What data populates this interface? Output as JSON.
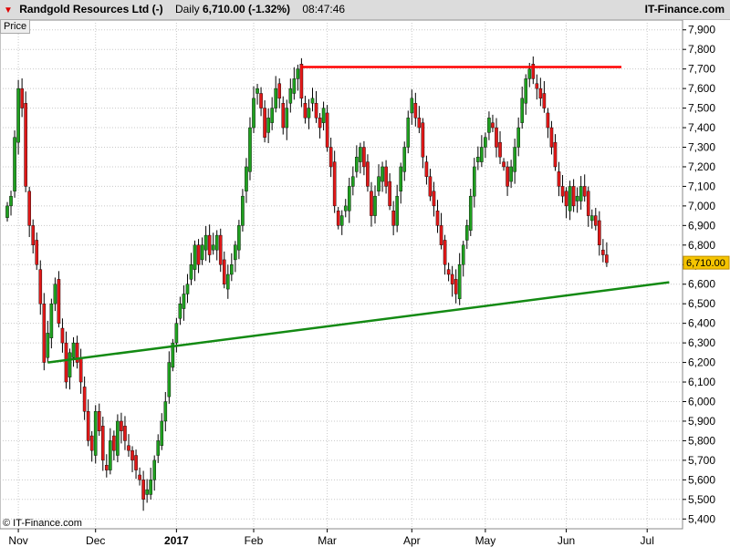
{
  "header": {
    "instrument": "Randgold Resources Ltd (-)",
    "period": "Daily",
    "change": "6,710.00 (-1.32%)",
    "time": "08:47:46",
    "site": "IT-Finance.com"
  },
  "price_label": "Price",
  "copyright": "© IT-Finance.com",
  "colors": {
    "up": "#1fa01f",
    "down": "#e01818",
    "resistance": "#ff0000",
    "support": "#138a13",
    "grid": "#c8c8c8"
  },
  "chart_data": {
    "type": "candlestick",
    "title": "Randgold Resources Ltd (-)",
    "ylabel": "Price",
    "ylim": [
      5350,
      7950
    ],
    "y_ticks": [
      "5,400",
      "5,500",
      "5,600",
      "5,700",
      "5,800",
      "5,900",
      "6,000",
      "6,100",
      "6,200",
      "6,300",
      "6,400",
      "6,500",
      "6,600",
      "6,700",
      "6,800",
      "6,900",
      "7,000",
      "7,100",
      "7,200",
      "7,300",
      "7,400",
      "7,500",
      "7,600",
      "7,700",
      "7,800",
      "7,900"
    ],
    "y_tick_values": [
      5400,
      5500,
      5600,
      5700,
      5800,
      5900,
      6000,
      6100,
      6200,
      6300,
      6400,
      6500,
      6600,
      6700,
      6800,
      6900,
      7000,
      7100,
      7200,
      7300,
      7400,
      7500,
      7600,
      7700,
      7800,
      7900
    ],
    "x_ticks": [
      {
        "label": "Nov",
        "index": 3
      },
      {
        "label": "Dec",
        "index": 24
      },
      {
        "label": "2017",
        "index": 46
      },
      {
        "label": "Feb",
        "index": 67
      },
      {
        "label": "Mar",
        "index": 87
      },
      {
        "label": "Apr",
        "index": 110
      },
      {
        "label": "May",
        "index": 130
      },
      {
        "label": "Jun",
        "index": 152
      },
      {
        "label": "Jul",
        "index": 174
      }
    ],
    "last_price": "6,710.00",
    "last_value": 6710,
    "closes": [
      7000,
      7050,
      7350,
      7600,
      7500,
      7100,
      6900,
      6800,
      6700,
      6500,
      6200,
      6350,
      6500,
      6600,
      6400,
      6300,
      6100,
      6250,
      6300,
      6200,
      6100,
      5950,
      5800,
      5750,
      5950,
      5850,
      5700,
      5650,
      5800,
      5750,
      5900,
      5850,
      5800,
      5750,
      5700,
      5650,
      5600,
      5500,
      5550,
      5600,
      5700,
      5800,
      5900,
      6000,
      6200,
      6300,
      6400,
      6500,
      6550,
      6600,
      6700,
      6800,
      6700,
      6800,
      6850,
      6750,
      6800,
      6850,
      6700,
      6600,
      6650,
      6700,
      6800,
      6900,
      7050,
      7200,
      7400,
      7550,
      7600,
      7500,
      7350,
      7450,
      7500,
      7600,
      7550,
      7400,
      7500,
      7600,
      7650,
      7700,
      7550,
      7450,
      7500,
      7550,
      7450,
      7400,
      7500,
      7300,
      7200,
      7000,
      6900,
      6950,
      7000,
      7100,
      7150,
      7250,
      7300,
      7200,
      7100,
      6950,
      7050,
      7150,
      7200,
      7100,
      7000,
      6900,
      7050,
      7200,
      7300,
      7450,
      7550,
      7450,
      7400,
      7250,
      7150,
      7050,
      7000,
      6900,
      6800,
      6700,
      6650,
      6600,
      6550,
      6700,
      6800,
      6900,
      7050,
      7200,
      7250,
      7300,
      7350,
      7450,
      7400,
      7300,
      7250,
      7200,
      7100,
      7200,
      7300,
      7400,
      7550,
      7650,
      7700,
      7650,
      7600,
      7550,
      7500,
      7400,
      7300,
      7200,
      7100,
      7050,
      7000,
      7100,
      7000,
      7050,
      7100,
      7050,
      6950,
      6950,
      6900,
      6800,
      6750,
      6710
    ],
    "series": [
      {
        "name": "resistance",
        "x": [
          80,
          167
        ],
        "y": [
          7710,
          7710
        ]
      },
      {
        "name": "support",
        "x": [
          11,
          180
        ],
        "y": [
          6200,
          6610
        ]
      }
    ]
  }
}
